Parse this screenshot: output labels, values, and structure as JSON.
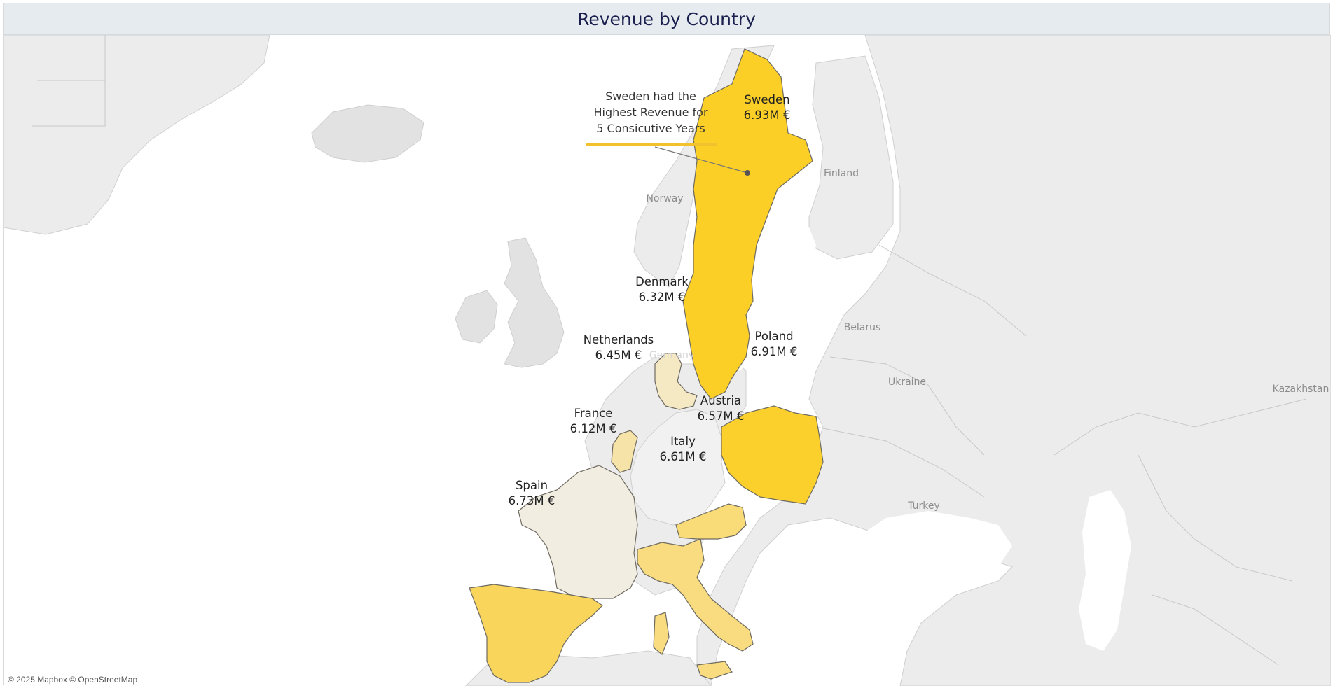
{
  "title": "Revenue by Country",
  "annotation": {
    "line1": "Sweden had the",
    "line2": "Highest Revenue for",
    "line3": "5 Consicutive Years"
  },
  "countries": [
    {
      "key": "sweden",
      "name": "Sweden",
      "revenue": "6.93M €",
      "color": "#fbcf25"
    },
    {
      "key": "poland",
      "name": "Poland",
      "revenue": "6.91M €",
      "color": "#fbd02d"
    },
    {
      "key": "spain",
      "name": "Spain",
      "revenue": "6.73M €",
      "color": "#f9d55c"
    },
    {
      "key": "italy",
      "name": "Italy",
      "revenue": "6.61M €",
      "color": "#f8dc7f"
    },
    {
      "key": "austria",
      "name": "Austria",
      "revenue": "6.57M €",
      "color": "#f9db77"
    },
    {
      "key": "netherlands",
      "name": "Netherlands",
      "revenue": "6.45M €",
      "color": "#f6e3a8"
    },
    {
      "key": "denmark",
      "name": "Denmark",
      "revenue": "6.32M €",
      "color": "#f5e9c4"
    },
    {
      "key": "france",
      "name": "France",
      "revenue": "6.12M €",
      "color": "#f1ede0"
    }
  ],
  "place_labels": {
    "norway": "Norway",
    "finland": "Finland",
    "belarus": "Belarus",
    "ukraine": "Ukraine",
    "germany": "Germany",
    "kazakhstan": "Kazakhstan",
    "turkey": "Turkey"
  },
  "attribution": "© 2025 Mapbox © OpenStreetMap"
}
